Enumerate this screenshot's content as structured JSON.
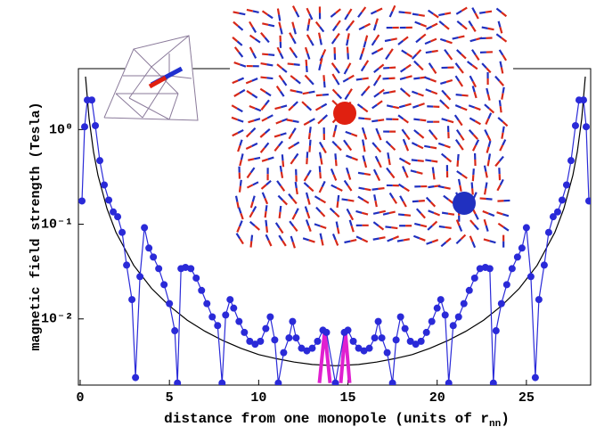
{
  "chart_data": {
    "type": "line",
    "log_y": true,
    "y_label": "magnetic field strength (Tesla)",
    "x_label": {
      "text": "distance from one monopole (units of r",
      "subscript": "nn",
      "suffix": ")"
    },
    "xlim": [
      -0.1,
      28.6
    ],
    "xticks": [
      0,
      5,
      10,
      15,
      20,
      25
    ],
    "ylim": [
      0.002,
      4.4
    ],
    "yticks": [
      {
        "value": 1,
        "label": "10⁰"
      },
      {
        "value": 0.1,
        "label": "10⁻¹"
      },
      {
        "value": 0.01,
        "label": "10⁻²"
      }
    ],
    "series": [
      {
        "color": "#2a2ad8",
        "markers": true,
        "x": [
          0.1,
          0.25,
          0.4,
          0.65,
          0.85,
          1.1,
          1.35,
          1.6,
          1.85,
          2.1,
          2.35,
          2.6,
          2.9,
          3.1,
          3.35,
          3.6,
          3.85,
          4.1,
          4.4,
          4.7,
          5.0,
          5.3,
          5.45,
          5.65,
          5.9,
          6.2,
          6.5,
          6.8,
          7.1,
          7.4,
          7.7,
          7.95,
          8.15,
          8.4,
          8.6,
          8.9,
          9.2,
          9.5,
          9.8,
          10.1,
          10.4,
          10.65,
          10.9,
          11.1,
          11.4,
          11.7,
          11.9,
          12.1,
          12.4,
          12.7,
          13.0,
          13.3,
          13.6,
          13.8,
          14.3,
          14.8,
          15.0,
          15.3,
          15.6,
          15.9,
          16.2,
          16.5,
          16.7,
          16.9,
          17.2,
          17.5,
          17.7,
          17.95,
          18.2,
          18.5,
          18.8,
          19.1,
          19.4,
          19.7,
          20.0,
          20.2,
          20.45,
          20.65,
          20.9,
          21.2,
          21.5,
          21.8,
          22.1,
          22.4,
          22.7,
          22.95,
          23.15,
          23.3,
          23.6,
          23.9,
          24.2,
          24.5,
          24.75,
          25.0,
          25.25,
          25.5,
          25.7,
          26.0,
          26.25,
          26.5,
          26.75,
          27.0,
          27.25,
          27.5,
          27.75,
          27.95,
          28.2,
          28.35,
          28.5
        ],
        "values": [
          0.176,
          1.07,
          2.05,
          2.05,
          1.1,
          0.47,
          0.26,
          0.18,
          0.135,
          0.12,
          0.082,
          0.037,
          0.016,
          0.0024,
          0.028,
          0.092,
          0.056,
          0.045,
          0.034,
          0.023,
          0.0145,
          0.0075,
          0.0021,
          0.034,
          0.035,
          0.034,
          0.027,
          0.02,
          0.0145,
          0.0105,
          0.0085,
          0.0021,
          0.011,
          0.016,
          0.013,
          0.0094,
          0.0072,
          0.0058,
          0.0054,
          0.0058,
          0.0079,
          0.0105,
          0.006,
          0.0021,
          0.0044,
          0.0063,
          0.0094,
          0.0063,
          0.0049,
          0.0046,
          0.0049,
          0.0058,
          0.0076,
          0.0072,
          0.0021,
          0.0072,
          0.0076,
          0.0058,
          0.0049,
          0.0046,
          0.0049,
          0.0063,
          0.0094,
          0.0063,
          0.0044,
          0.0021,
          0.006,
          0.0105,
          0.0079,
          0.0058,
          0.0054,
          0.0058,
          0.0072,
          0.0094,
          0.013,
          0.016,
          0.011,
          0.0021,
          0.0085,
          0.0105,
          0.0145,
          0.02,
          0.027,
          0.034,
          0.035,
          0.034,
          0.0021,
          0.0075,
          0.0145,
          0.023,
          0.034,
          0.045,
          0.056,
          0.092,
          0.028,
          0.0024,
          0.016,
          0.037,
          0.082,
          0.12,
          0.135,
          0.18,
          0.26,
          0.47,
          1.1,
          2.05,
          2.05,
          1.07,
          0.176
        ]
      },
      {
        "color": "#e020d0",
        "markers": false,
        "x": [
          13.4,
          13.7,
          14.0,
          null,
          14.6,
          14.85,
          15.1
        ],
        "values": [
          0.0021,
          0.0075,
          0.0021,
          null,
          0.0021,
          0.0075,
          0.0021
        ]
      },
      {
        "color": "#000000",
        "markers": false,
        "x": [
          0.3,
          0.5,
          0.75,
          1,
          1.5,
          2,
          3,
          4,
          5,
          6,
          7,
          8,
          9,
          10,
          11,
          12,
          13,
          14.3,
          15.6,
          16.6,
          17.6,
          18.6,
          19.6,
          20.6,
          21.6,
          22.6,
          23.6,
          24.6,
          25.6,
          26.6,
          27.1,
          27.6,
          27.85,
          28.1,
          28.3
        ],
        "values": [
          3.63,
          1.308,
          0.581,
          0.328,
          0.146,
          0.0823,
          0.0368,
          0.021,
          0.0137,
          0.0097,
          0.0074,
          0.0059,
          0.0049,
          0.0042,
          0.0038,
          0.0035,
          0.0033,
          0.0032,
          0.0033,
          0.0035,
          0.0038,
          0.0042,
          0.0049,
          0.0059,
          0.0074,
          0.0097,
          0.0137,
          0.021,
          0.0368,
          0.0823,
          0.146,
          0.328,
          0.581,
          1.308,
          3.63
        ]
      }
    ]
  }
}
